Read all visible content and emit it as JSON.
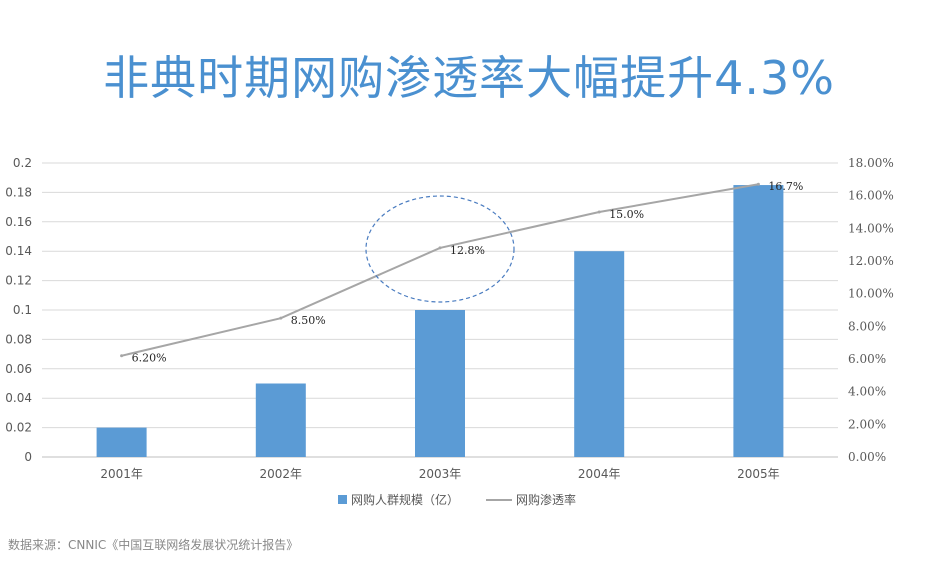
{
  "page": {
    "title": "非典时期网购渗透率大幅提升4.3%",
    "source": "数据来源：CNNIC《中国互联网络发展状况统计报告》"
  },
  "colors": {
    "bar": "#5b9bd5",
    "line": "#a6a6a6",
    "title": "#4a90d0",
    "ellipse": "#4a7cc0"
  },
  "chart_data": {
    "type": "bar",
    "categories": [
      "2001年",
      "2002年",
      "2003年",
      "2004年",
      "2005年"
    ],
    "series": [
      {
        "name": "网购人群规模（亿）",
        "type": "bar",
        "axis": "left",
        "values": [
          0.02,
          0.05,
          0.1,
          0.14,
          0.185
        ],
        "labels": []
      },
      {
        "name": "网购渗透率",
        "type": "line",
        "axis": "right",
        "values": [
          6.2,
          8.5,
          12.8,
          15.0,
          16.7
        ],
        "labels": [
          "6.20%",
          "8.50%",
          "12.8%",
          "15.0%",
          "16.7%"
        ]
      }
    ],
    "y_left": {
      "min": 0,
      "max": 0.2,
      "step": 0.02,
      "ticks": [
        "0",
        "0.02",
        "0.04",
        "0.06",
        "0.08",
        "0.1",
        "0.12",
        "0.14",
        "0.16",
        "0.18",
        "0.2"
      ]
    },
    "y_right": {
      "min": 0,
      "max": 18,
      "step": 2,
      "ticks": [
        "0.00%",
        "2.00%",
        "4.00%",
        "6.00%",
        "8.00%",
        "10.00%",
        "12.00%",
        "14.00%",
        "16.00%",
        "18.00%"
      ]
    },
    "grid": true,
    "legend": "bottom",
    "annotation": {
      "type": "dashed-ellipse",
      "category": "2003年"
    }
  }
}
